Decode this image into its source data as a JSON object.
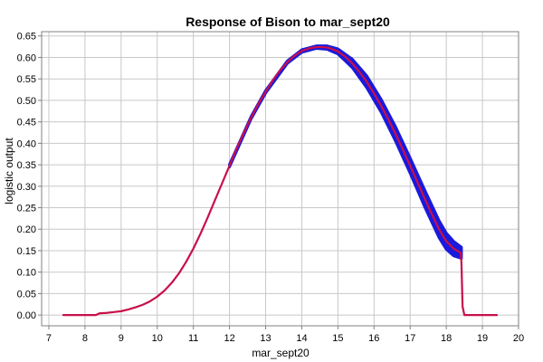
{
  "chart_data": {
    "type": "line",
    "title": "Response of Bison to mar_sept20",
    "xlabel": "mar_sept20",
    "ylabel": "logistic output",
    "xlim": [
      6.8,
      20.0
    ],
    "ylim": [
      -0.025,
      0.66
    ],
    "x_ticks": [
      7,
      8,
      9,
      10,
      11,
      12,
      13,
      14,
      15,
      16,
      17,
      18,
      19,
      20
    ],
    "x_tick_labels": [
      "7",
      "8",
      "9",
      "10",
      "11",
      "12",
      "13",
      "14",
      "15",
      "16",
      "17",
      "18",
      "19",
      "20"
    ],
    "y_ticks": [
      0.0,
      0.05,
      0.1,
      0.15,
      0.2,
      0.25,
      0.3,
      0.35,
      0.4,
      0.45,
      0.5,
      0.55,
      0.6,
      0.65
    ],
    "y_tick_labels": [
      "0.00",
      "0.05",
      "0.10",
      "0.15",
      "0.20",
      "0.25",
      "0.30",
      "0.35",
      "0.40",
      "0.45",
      "0.50",
      "0.55",
      "0.60",
      "0.65"
    ],
    "grid": true,
    "colors": {
      "mean": "#c8104a",
      "band": "#1a1adc"
    },
    "series": [
      {
        "role": "mean",
        "x": [
          7.4,
          8.3,
          8.4,
          8.6,
          8.8,
          9.0,
          9.2,
          9.4,
          9.6,
          9.8,
          10.0,
          10.2,
          10.4,
          10.6,
          10.8,
          11.0,
          11.2,
          11.4,
          11.6,
          11.8,
          12.0,
          12.2,
          12.4,
          12.6,
          12.8,
          13.0,
          13.2,
          13.4,
          13.6,
          13.8,
          14.0,
          14.2,
          14.4,
          14.6,
          14.7,
          14.8,
          15.0,
          15.2,
          15.4,
          15.6,
          15.8,
          16.0,
          16.2,
          16.4,
          16.6,
          16.8,
          17.0,
          17.2,
          17.4,
          17.6,
          17.8,
          18.0,
          18.2,
          18.4,
          18.42,
          18.45,
          18.5,
          19.4
        ],
        "y": [
          0.0,
          0.0,
          0.004,
          0.005,
          0.007,
          0.009,
          0.013,
          0.018,
          0.024,
          0.032,
          0.043,
          0.057,
          0.075,
          0.097,
          0.124,
          0.155,
          0.19,
          0.228,
          0.268,
          0.308,
          0.348,
          0.388,
          0.425,
          0.46,
          0.492,
          0.52,
          0.547,
          0.57,
          0.589,
          0.604,
          0.615,
          0.621,
          0.624,
          0.624,
          0.623,
          0.621,
          0.614,
          0.602,
          0.586,
          0.566,
          0.543,
          0.516,
          0.487,
          0.455,
          0.421,
          0.385,
          0.348,
          0.31,
          0.272,
          0.235,
          0.2,
          0.172,
          0.155,
          0.145,
          0.12,
          0.02,
          0.0,
          0.0
        ]
      },
      {
        "role": "band-upper",
        "x": [
          12.0,
          12.6,
          13.0,
          13.6,
          14.0,
          14.4,
          14.7,
          15.0,
          15.4,
          15.8,
          16.2,
          16.6,
          17.0,
          17.4,
          17.8,
          18.0,
          18.2,
          18.42
        ],
        "y": [
          0.351,
          0.463,
          0.523,
          0.592,
          0.618,
          0.627,
          0.627,
          0.62,
          0.596,
          0.557,
          0.502,
          0.438,
          0.366,
          0.292,
          0.22,
          0.191,
          0.172,
          0.158
        ]
      },
      {
        "role": "band-lower",
        "x": [
          12.0,
          12.6,
          13.0,
          13.6,
          14.0,
          14.4,
          14.7,
          15.0,
          15.4,
          15.8,
          16.2,
          16.6,
          17.0,
          17.4,
          17.8,
          18.0,
          18.2,
          18.42
        ],
        "y": [
          0.345,
          0.457,
          0.517,
          0.586,
          0.612,
          0.621,
          0.619,
          0.608,
          0.576,
          0.529,
          0.472,
          0.404,
          0.33,
          0.252,
          0.18,
          0.153,
          0.138,
          0.132
        ]
      }
    ]
  }
}
